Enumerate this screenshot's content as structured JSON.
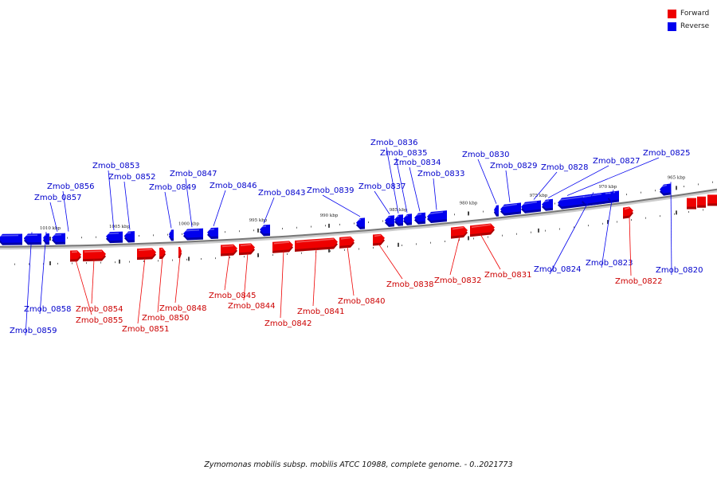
{
  "legend": {
    "forward_label": "Forward",
    "reverse_label": "Reverse",
    "forward_color": "#ee0000",
    "reverse_color": "#0000ee"
  },
  "caption": "Zymomonas mobilis subsp. mobilis ATCC 10988, complete genome. - 0..2021773",
  "ticks": [
    "1010 kbp",
    "1005 kbp",
    "1000 kbp",
    "995 kbp",
    "990 kbp",
    "985 kbp",
    "980 kbp",
    "975 kbp",
    "970 kbp",
    "965 kbp"
  ],
  "genes": [
    {
      "name": "Zmob_0859",
      "strand": "reverse"
    },
    {
      "name": "Zmob_0858",
      "strand": "reverse"
    },
    {
      "name": "Zmob_0857",
      "strand": "reverse"
    },
    {
      "name": "Zmob_0856",
      "strand": "reverse"
    },
    {
      "name": "Zmob_0855",
      "strand": "forward"
    },
    {
      "name": "Zmob_0854",
      "strand": "forward"
    },
    {
      "name": "Zmob_0853",
      "strand": "reverse"
    },
    {
      "name": "Zmob_0852",
      "strand": "reverse"
    },
    {
      "name": "Zmob_0851",
      "strand": "forward"
    },
    {
      "name": "Zmob_0850",
      "strand": "forward"
    },
    {
      "name": "Zmob_0849",
      "strand": "reverse"
    },
    {
      "name": "Zmob_0848",
      "strand": "forward"
    },
    {
      "name": "Zmob_0847",
      "strand": "reverse"
    },
    {
      "name": "Zmob_0846",
      "strand": "reverse"
    },
    {
      "name": "Zmob_0845",
      "strand": "forward"
    },
    {
      "name": "Zmob_0844",
      "strand": "forward"
    },
    {
      "name": "Zmob_0843",
      "strand": "reverse"
    },
    {
      "name": "Zmob_0842",
      "strand": "forward"
    },
    {
      "name": "Zmob_0841",
      "strand": "forward"
    },
    {
      "name": "Zmob_0840",
      "strand": "forward"
    },
    {
      "name": "Zmob_0839",
      "strand": "reverse"
    },
    {
      "name": "Zmob_0838",
      "strand": "forward"
    },
    {
      "name": "Zmob_0837",
      "strand": "reverse"
    },
    {
      "name": "Zmob_0836",
      "strand": "reverse"
    },
    {
      "name": "Zmob_0835",
      "strand": "reverse"
    },
    {
      "name": "Zmob_0834",
      "strand": "reverse"
    },
    {
      "name": "Zmob_0833",
      "strand": "reverse"
    },
    {
      "name": "Zmob_0832",
      "strand": "forward"
    },
    {
      "name": "Zmob_0831",
      "strand": "forward"
    },
    {
      "name": "Zmob_0830",
      "strand": "reverse"
    },
    {
      "name": "Zmob_0829",
      "strand": "reverse"
    },
    {
      "name": "Zmob_0828",
      "strand": "reverse"
    },
    {
      "name": "Zmob_0827",
      "strand": "reverse"
    },
    {
      "name": "Zmob_0825",
      "strand": "reverse"
    },
    {
      "name": "Zmob_0824",
      "strand": "reverse"
    },
    {
      "name": "Zmob_0823",
      "strand": "reverse"
    },
    {
      "name": "Zmob_0822",
      "strand": "forward"
    },
    {
      "name": "Zmob_0820",
      "strand": "reverse"
    }
  ]
}
